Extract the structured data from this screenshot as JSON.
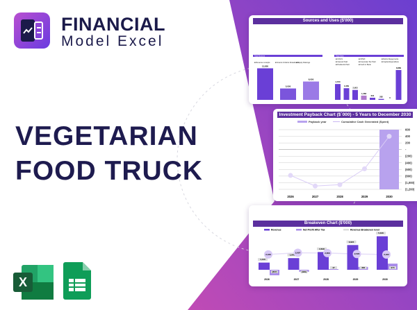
{
  "brand": {
    "line1": "FINANCIAL",
    "line2": "Model Excel"
  },
  "headline": {
    "line1": "VEGETARIAN",
    "line2": "FOOD TRUCK"
  },
  "colors": {
    "accent": "#6a3fd6",
    "light": "#c9b6f2",
    "header": "#5b2f9e",
    "excel": "#1d6f42",
    "sheets": "#0f9d58"
  },
  "apps": [
    {
      "icon": "excel-icon"
    },
    {
      "icon": "google-sheets-icon"
    }
  ],
  "chart_data": [
    {
      "type": "bar",
      "title": "Sources and Uses ($'000)",
      "sources_legend": [
        "Revenue receipts",
        "Grants & Debts Drawdowns",
        "Equity Raisings"
      ],
      "sources_values": [
        13850,
        5000,
        8050
      ],
      "sources_labels": [
        "13,850",
        "5,000",
        "8,050"
      ],
      "uses_legend": [
        "COGS",
        "OPEX",
        "Debts Repayments",
        "Interest Paid",
        "Corporate Tax Paid",
        "Capital Expenditure",
        "Dividends Paid",
        "Cash in Bank"
      ],
      "uses_values": [
        4720,
        3469,
        2953,
        1268,
        631,
        282,
        0,
        8889
      ],
      "uses_labels": [
        "4,720",
        "3,469",
        "2,953",
        "1,268",
        "631",
        "282",
        "0",
        "8,889"
      ],
      "total_sources_label": "Total Sources",
      "total_uses_label": "Total Uses"
    },
    {
      "type": "line",
      "title": "Investment Payback Chart ($`000) - 5 Years to December 2030",
      "legend": [
        "Payback year",
        "Cumulative Cash Generated (Spent)"
      ],
      "x": [
        "2026",
        "2027",
        "2028",
        "2029",
        "2030"
      ],
      "values": [
        -780,
        -1100,
        -1060,
        -580,
        400
      ],
      "payback_year": "2030",
      "ylim": [
        -1200,
        600
      ],
      "yticks": [
        "600",
        "400",
        "200",
        "-",
        "(200)",
        "(400)",
        "(600)",
        "(800)",
        "(1,000)",
        "(1,200)"
      ]
    },
    {
      "type": "bar",
      "title": "Breakeven Chart ($'000)",
      "legend": [
        "Revenue",
        "Net Profit After Tax",
        "Revenue Breakeven level"
      ],
      "x": [
        "2026",
        "2027",
        "2028",
        "2029",
        "2030"
      ],
      "revenue": [
        1140,
        1848,
        2818,
        3924,
        5316
      ],
      "revenue_labels": [
        "1,140",
        "1,848",
        "2,818",
        "3,924",
        "5,316"
      ],
      "net_profit": [
        -867,
        -330,
        47,
        458,
        973
      ],
      "net_profit_labels": [
        "(867)",
        "(330)",
        "47",
        "458",
        "973"
      ],
      "breakeven": [
        2439,
        2697,
        2656,
        2505,
        2422
      ],
      "breakeven_labels": [
        "2,439",
        "2,697",
        "2,656",
        "2,505",
        "2,422"
      ]
    }
  ]
}
